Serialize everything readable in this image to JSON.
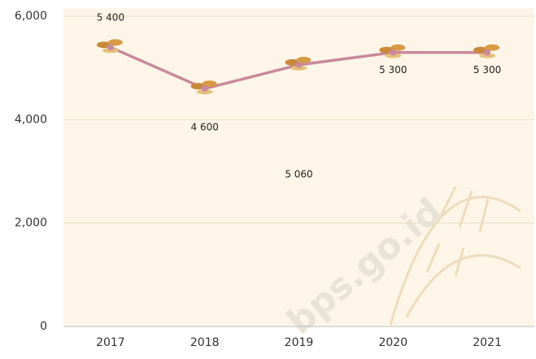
{
  "chart_data": {
    "type": "line",
    "categories": [
      "2017",
      "2018",
      "2019",
      "2020",
      "2021"
    ],
    "series": [
      {
        "name": null,
        "color": "#c9899a",
        "values": [
          5400,
          4600,
          5060,
          5300,
          5300
        ],
        "value_labels": [
          "5 400",
          "4 600",
          "5 060",
          "5 300",
          "5 300"
        ]
      }
    ],
    "ylim": [
      0,
      6000
    ],
    "yticks": [
      0,
      {
        "value": 2000,
        "label": "2,000"
      },
      {
        "value": 4000,
        "label": "4,000"
      },
      {
        "value": 6000,
        "label": "6,000"
      }
    ],
    "grid": true,
    "watermark": "bps.go.id"
  }
}
